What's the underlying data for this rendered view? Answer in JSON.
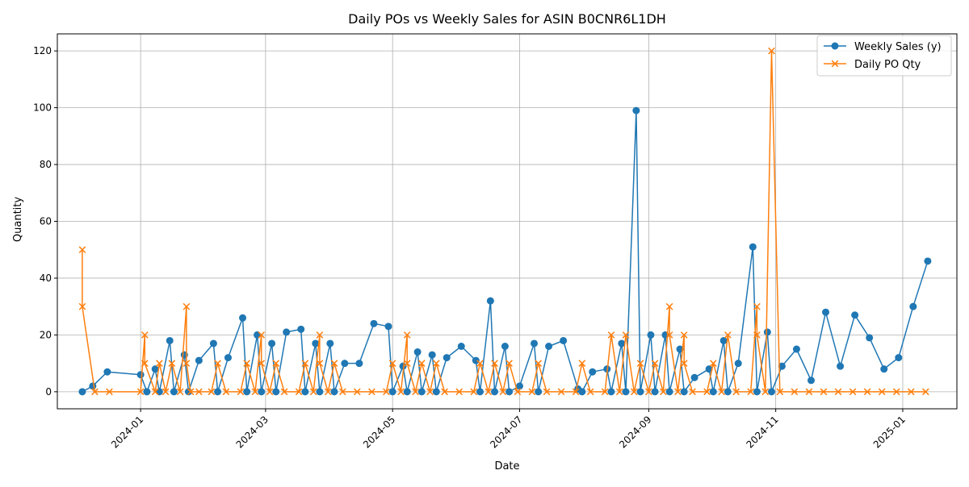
{
  "chart_data": {
    "type": "line",
    "title": "Daily POs vs Weekly Sales for ASIN B0CNR6L1DH",
    "xlabel": "Date",
    "ylabel": "Quantity",
    "xlim": [
      "2023-11-22",
      "2025-01-27"
    ],
    "ylim": [
      -6,
      126
    ],
    "x_ticks": [
      {
        "date": "2024-01-01",
        "label": "2024-01"
      },
      {
        "date": "2024-03-01",
        "label": "2024-03"
      },
      {
        "date": "2024-05-01",
        "label": "2024-05"
      },
      {
        "date": "2024-07-01",
        "label": "2024-07"
      },
      {
        "date": "2024-09-01",
        "label": "2024-09"
      },
      {
        "date": "2024-11-01",
        "label": "2024-11"
      },
      {
        "date": "2025-01-01",
        "label": "2025-01"
      }
    ],
    "y_ticks": [
      0,
      20,
      40,
      60,
      80,
      100,
      120
    ],
    "grid": true,
    "legend_position": "top-right",
    "series": [
      {
        "name": "Weekly Sales (y)",
        "color": "#1f77b4",
        "marker": "circle",
        "points": [
          [
            "2023-12-04",
            0
          ],
          [
            "2023-12-09",
            2
          ],
          [
            "2023-12-16",
            7
          ],
          [
            "2024-01-01",
            6
          ],
          [
            "2024-01-04",
            0
          ],
          [
            "2024-01-08",
            8
          ],
          [
            "2024-01-10",
            0
          ],
          [
            "2024-01-15",
            18
          ],
          [
            "2024-01-17",
            0
          ],
          [
            "2024-01-22",
            13
          ],
          [
            "2024-01-24",
            0
          ],
          [
            "2024-01-29",
            11
          ],
          [
            "2024-02-05",
            17
          ],
          [
            "2024-02-07",
            0
          ],
          [
            "2024-02-12",
            12
          ],
          [
            "2024-02-19",
            26
          ],
          [
            "2024-02-21",
            0
          ],
          [
            "2024-02-26",
            20
          ],
          [
            "2024-02-28",
            0
          ],
          [
            "2024-03-04",
            17
          ],
          [
            "2024-03-06",
            0
          ],
          [
            "2024-03-11",
            21
          ],
          [
            "2024-03-18",
            22
          ],
          [
            "2024-03-20",
            0
          ],
          [
            "2024-03-25",
            17
          ],
          [
            "2024-03-27",
            0
          ],
          [
            "2024-04-01",
            17
          ],
          [
            "2024-04-03",
            0
          ],
          [
            "2024-04-08",
            10
          ],
          [
            "2024-04-15",
            10
          ],
          [
            "2024-04-22",
            24
          ],
          [
            "2024-04-29",
            23
          ],
          [
            "2024-05-01",
            0
          ],
          [
            "2024-05-06",
            9
          ],
          [
            "2024-05-08",
            0
          ],
          [
            "2024-05-13",
            14
          ],
          [
            "2024-05-15",
            0
          ],
          [
            "2024-05-20",
            13
          ],
          [
            "2024-05-22",
            0
          ],
          [
            "2024-05-27",
            12
          ],
          [
            "2024-06-03",
            16
          ],
          [
            "2024-06-10",
            11
          ],
          [
            "2024-06-12",
            0
          ],
          [
            "2024-06-17",
            32
          ],
          [
            "2024-06-19",
            0
          ],
          [
            "2024-06-24",
            16
          ],
          [
            "2024-06-26",
            0
          ],
          [
            "2024-07-01",
            2
          ],
          [
            "2024-07-08",
            17
          ],
          [
            "2024-07-10",
            0
          ],
          [
            "2024-07-15",
            16
          ],
          [
            "2024-07-22",
            18
          ],
          [
            "2024-07-29",
            1
          ],
          [
            "2024-07-31",
            0
          ],
          [
            "2024-08-05",
            7
          ],
          [
            "2024-08-12",
            8
          ],
          [
            "2024-08-14",
            0
          ],
          [
            "2024-08-19",
            17
          ],
          [
            "2024-08-21",
            0
          ],
          [
            "2024-08-26",
            99
          ],
          [
            "2024-08-28",
            0
          ],
          [
            "2024-09-02",
            20
          ],
          [
            "2024-09-04",
            0
          ],
          [
            "2024-09-09",
            20
          ],
          [
            "2024-09-11",
            0
          ],
          [
            "2024-09-16",
            15
          ],
          [
            "2024-09-18",
            0
          ],
          [
            "2024-09-23",
            5
          ],
          [
            "2024-09-30",
            8
          ],
          [
            "2024-10-02",
            0
          ],
          [
            "2024-10-07",
            18
          ],
          [
            "2024-10-09",
            0
          ],
          [
            "2024-10-14",
            10
          ],
          [
            "2024-10-21",
            51
          ],
          [
            "2024-10-23",
            0
          ],
          [
            "2024-10-28",
            21
          ],
          [
            "2024-10-30",
            0
          ],
          [
            "2024-11-04",
            9
          ],
          [
            "2024-11-11",
            15
          ],
          [
            "2024-11-18",
            4
          ],
          [
            "2024-11-25",
            28
          ],
          [
            "2024-12-02",
            9
          ],
          [
            "2024-12-09",
            27
          ],
          [
            "2024-12-16",
            19
          ],
          [
            "2024-12-23",
            8
          ],
          [
            "2024-12-30",
            12
          ],
          [
            "2025-01-06",
            30
          ],
          [
            "2025-01-13",
            46
          ]
        ]
      },
      {
        "name": "Daily PO Qty",
        "color": "#ff7f0e",
        "marker": "x",
        "points": [
          [
            "2023-12-04",
            50
          ],
          [
            "2023-12-04",
            30
          ],
          [
            "2023-12-10",
            0
          ],
          [
            "2023-12-17",
            0
          ],
          [
            "2024-01-01",
            0
          ],
          [
            "2024-01-03",
            20
          ],
          [
            "2024-01-03",
            10
          ],
          [
            "2024-01-08",
            0
          ],
          [
            "2024-01-10",
            10
          ],
          [
            "2024-01-13",
            0
          ],
          [
            "2024-01-16",
            10
          ],
          [
            "2024-01-20",
            0
          ],
          [
            "2024-01-23",
            30
          ],
          [
            "2024-01-23",
            10
          ],
          [
            "2024-01-25",
            0
          ],
          [
            "2024-01-29",
            0
          ],
          [
            "2024-02-04",
            0
          ],
          [
            "2024-02-07",
            10
          ],
          [
            "2024-02-11",
            0
          ],
          [
            "2024-02-18",
            0
          ],
          [
            "2024-02-21",
            10
          ],
          [
            "2024-02-25",
            0
          ],
          [
            "2024-02-28",
            20
          ],
          [
            "2024-02-28",
            10
          ],
          [
            "2024-03-03",
            0
          ],
          [
            "2024-03-06",
            10
          ],
          [
            "2024-03-10",
            0
          ],
          [
            "2024-03-17",
            0
          ],
          [
            "2024-03-20",
            10
          ],
          [
            "2024-03-24",
            0
          ],
          [
            "2024-03-27",
            20
          ],
          [
            "2024-03-27",
            10
          ],
          [
            "2024-03-31",
            0
          ],
          [
            "2024-04-03",
            10
          ],
          [
            "2024-04-07",
            0
          ],
          [
            "2024-04-14",
            0
          ],
          [
            "2024-04-21",
            0
          ],
          [
            "2024-04-28",
            0
          ],
          [
            "2024-05-01",
            10
          ],
          [
            "2024-05-05",
            0
          ],
          [
            "2024-05-08",
            20
          ],
          [
            "2024-05-08",
            10
          ],
          [
            "2024-05-12",
            0
          ],
          [
            "2024-05-15",
            10
          ],
          [
            "2024-05-19",
            0
          ],
          [
            "2024-05-22",
            10
          ],
          [
            "2024-05-26",
            0
          ],
          [
            "2024-06-02",
            0
          ],
          [
            "2024-06-09",
            0
          ],
          [
            "2024-06-12",
            10
          ],
          [
            "2024-06-16",
            0
          ],
          [
            "2024-06-19",
            10
          ],
          [
            "2024-06-23",
            0
          ],
          [
            "2024-06-26",
            10
          ],
          [
            "2024-06-30",
            0
          ],
          [
            "2024-07-07",
            0
          ],
          [
            "2024-07-10",
            10
          ],
          [
            "2024-07-14",
            0
          ],
          [
            "2024-07-21",
            0
          ],
          [
            "2024-07-28",
            0
          ],
          [
            "2024-07-31",
            10
          ],
          [
            "2024-08-04",
            0
          ],
          [
            "2024-08-11",
            0
          ],
          [
            "2024-08-14",
            20
          ],
          [
            "2024-08-18",
            0
          ],
          [
            "2024-08-21",
            20
          ],
          [
            "2024-08-25",
            0
          ],
          [
            "2024-08-28",
            10
          ],
          [
            "2024-09-01",
            0
          ],
          [
            "2024-09-04",
            10
          ],
          [
            "2024-09-08",
            0
          ],
          [
            "2024-09-11",
            30
          ],
          [
            "2024-09-11",
            20
          ],
          [
            "2024-09-15",
            0
          ],
          [
            "2024-09-18",
            20
          ],
          [
            "2024-09-18",
            10
          ],
          [
            "2024-09-22",
            0
          ],
          [
            "2024-09-29",
            0
          ],
          [
            "2024-10-02",
            10
          ],
          [
            "2024-10-06",
            0
          ],
          [
            "2024-10-09",
            20
          ],
          [
            "2024-10-13",
            0
          ],
          [
            "2024-10-20",
            0
          ],
          [
            "2024-10-23",
            30
          ],
          [
            "2024-10-23",
            20
          ],
          [
            "2024-10-27",
            0
          ],
          [
            "2024-10-30",
            120
          ],
          [
            "2024-11-03",
            0
          ],
          [
            "2024-11-10",
            0
          ],
          [
            "2024-11-17",
            0
          ],
          [
            "2024-11-24",
            0
          ],
          [
            "2024-12-01",
            0
          ],
          [
            "2024-12-08",
            0
          ],
          [
            "2024-12-15",
            0
          ],
          [
            "2024-12-22",
            0
          ],
          [
            "2024-12-29",
            0
          ],
          [
            "2025-01-05",
            0
          ],
          [
            "2025-01-12",
            0
          ]
        ]
      }
    ]
  }
}
